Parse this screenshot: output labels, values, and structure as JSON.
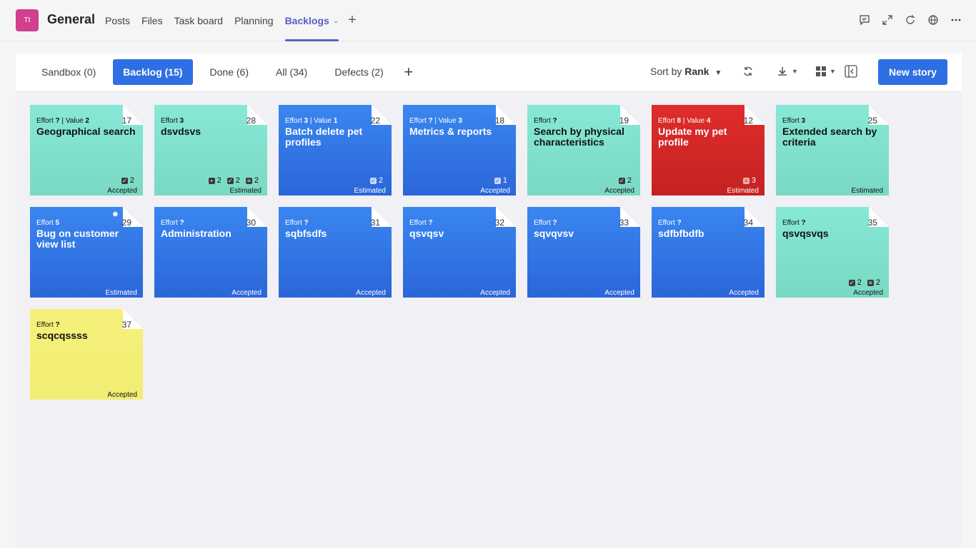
{
  "header": {
    "avatar": "Tt",
    "title": "General",
    "tabs": [
      "Posts",
      "Files",
      "Task board",
      "Planning",
      "Backlogs"
    ],
    "active_tab": "Backlogs",
    "add": "+"
  },
  "toolbar": {
    "tabs": [
      "Sandbox (0)",
      "Backlog (15)",
      "Done (6)",
      "All (34)",
      "Defects (2)"
    ],
    "active": "Backlog (15)",
    "add": "+",
    "sort_prefix": "Sort by",
    "sort_value": "Rank",
    "new_story": "New story"
  },
  "cards": [
    {
      "num": "17",
      "effort": "?",
      "value": "2",
      "title": "Geographical search",
      "status": "Accepted",
      "color": "green",
      "badges": [
        {
          "icon": "check-icon",
          "n": "2"
        }
      ]
    },
    {
      "num": "28",
      "effort": "3",
      "value": null,
      "title": "dsvdsvs",
      "status": "Estimated",
      "color": "green",
      "badges": [
        {
          "icon": "attachment-icon",
          "n": "2"
        },
        {
          "icon": "check-icon",
          "n": "2"
        },
        {
          "icon": "list-icon",
          "n": "2"
        }
      ]
    },
    {
      "num": "22",
      "effort": "3",
      "value": "1",
      "title": "Batch delete pet profiles",
      "status": "Estimated",
      "color": "blue",
      "badges": [
        {
          "icon": "check-icon",
          "n": "2"
        }
      ]
    },
    {
      "num": "18",
      "effort": "?",
      "value": "3",
      "title": "Metrics & reports",
      "status": "Accepted",
      "color": "blue",
      "badges": [
        {
          "icon": "check-icon",
          "n": "1"
        }
      ]
    },
    {
      "num": "19",
      "effort": "?",
      "value": null,
      "title": "Search by physical characteristics",
      "status": "Accepted",
      "color": "green",
      "badges": [
        {
          "icon": "check-icon",
          "n": "2"
        }
      ]
    },
    {
      "num": "12",
      "effort": "8",
      "value": "4",
      "title": "Update my pet profile",
      "status": "Estimated",
      "color": "red",
      "badges": [
        {
          "icon": "list-icon",
          "n": "3"
        }
      ]
    },
    {
      "num": "25",
      "effort": "3",
      "value": null,
      "title": "Extended search by criteria",
      "status": "Estimated",
      "color": "green",
      "badges": []
    },
    {
      "num": "29",
      "effort": "5",
      "value": null,
      "title": "Bug on customer view list",
      "status": "Estimated",
      "color": "blue",
      "bug": true,
      "badges": []
    },
    {
      "num": "30",
      "effort": "?",
      "value": null,
      "title": "Administration",
      "status": "Accepted",
      "color": "blue",
      "badges": []
    },
    {
      "num": "31",
      "effort": "?",
      "value": null,
      "title": "sqbfsdfs",
      "status": "Accepted",
      "color": "blue",
      "badges": []
    },
    {
      "num": "32",
      "effort": "?",
      "value": null,
      "title": "qsvqsv",
      "status": "Accepted",
      "color": "blue",
      "badges": []
    },
    {
      "num": "33",
      "effort": "?",
      "value": null,
      "title": "sqvqvsv",
      "status": "Accepted",
      "color": "blue",
      "badges": []
    },
    {
      "num": "34",
      "effort": "?",
      "value": null,
      "title": "sdfbfbdfb",
      "status": "Accepted",
      "color": "blue",
      "badges": []
    },
    {
      "num": "35",
      "effort": "?",
      "value": null,
      "title": "qsvqsvqs",
      "status": "Accepted",
      "color": "green",
      "badges": [
        {
          "icon": "check-icon",
          "n": "2"
        },
        {
          "icon": "list-icon",
          "n": "2"
        }
      ]
    },
    {
      "num": "37",
      "effort": "?",
      "value": null,
      "title": "scqcqssss",
      "status": "Accepted",
      "color": "yellow",
      "badges": []
    }
  ]
}
